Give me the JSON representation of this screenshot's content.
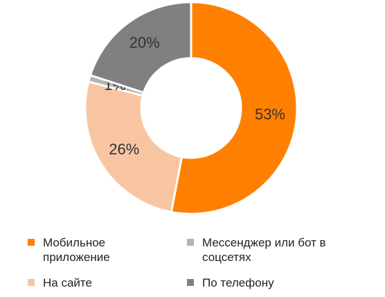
{
  "chart_data": {
    "type": "donut",
    "categories": [
      "Мобильное приложение",
      "На сайте",
      "Мессенджер или бот в соцсетях",
      "По телефону"
    ],
    "values": [
      53,
      26,
      1,
      20
    ],
    "value_labels": [
      "53%",
      "26%",
      "1%",
      "20%"
    ],
    "colors": [
      "#ff8000",
      "#f8c5a2",
      "#b3b3b3",
      "#808080"
    ]
  }
}
